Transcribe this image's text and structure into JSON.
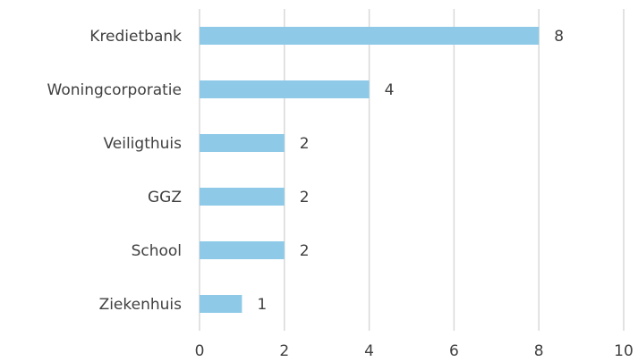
{
  "chart_data": {
    "type": "bar",
    "orientation": "horizontal",
    "categories": [
      "Kredietbank",
      "Woningcorporatie",
      "Veiligthuis",
      "GGZ",
      "School",
      "Ziekenhuis"
    ],
    "values": [
      8,
      4,
      2,
      2,
      2,
      1
    ],
    "color": "#8ecae8",
    "xlim": [
      0,
      10
    ],
    "xticks": [
      0,
      2,
      4,
      6,
      8,
      10
    ],
    "grid": true
  }
}
